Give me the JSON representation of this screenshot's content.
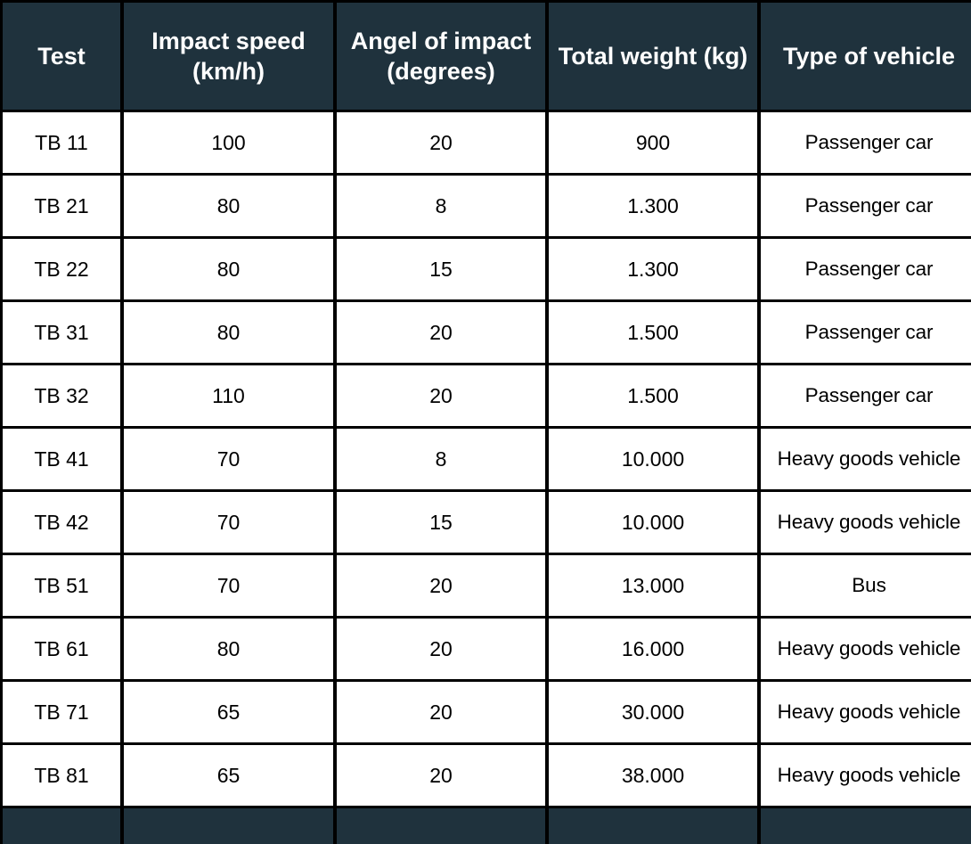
{
  "table": {
    "headers": [
      "Test",
      "Impact speed\n(km/h)",
      "Angel of impact\n(degrees)",
      "Total weight (kg)",
      "Type of vehicle"
    ],
    "rows": [
      [
        "TB 11",
        "100",
        "20",
        "900",
        "Passenger car"
      ],
      [
        "TB 21",
        "80",
        "8",
        "1.300",
        "Passenger car"
      ],
      [
        "TB 22",
        "80",
        "15",
        "1.300",
        "Passenger car"
      ],
      [
        "TB 31",
        "80",
        "20",
        "1.500",
        "Passenger car"
      ],
      [
        "TB 32",
        "110",
        "20",
        "1.500",
        "Passenger car"
      ],
      [
        "TB 41",
        "70",
        "8",
        "10.000",
        "Heavy goods vehicle"
      ],
      [
        "TB 42",
        "70",
        "15",
        "10.000",
        "Heavy goods vehicle"
      ],
      [
        "TB 51",
        "70",
        "20",
        "13.000",
        "Bus"
      ],
      [
        "TB 61",
        "80",
        "20",
        "16.000",
        "Heavy goods vehicle"
      ],
      [
        "TB 71",
        "65",
        "20",
        "30.000",
        "Heavy goods vehicle"
      ],
      [
        "TB 81",
        "65",
        "20",
        "38.000",
        "Heavy goods vehicle"
      ]
    ]
  },
  "colors": {
    "header_background": "#1f323d",
    "header_text": "#ffffff",
    "grid_lines": "#000000",
    "cell_background": "#ffffff"
  }
}
